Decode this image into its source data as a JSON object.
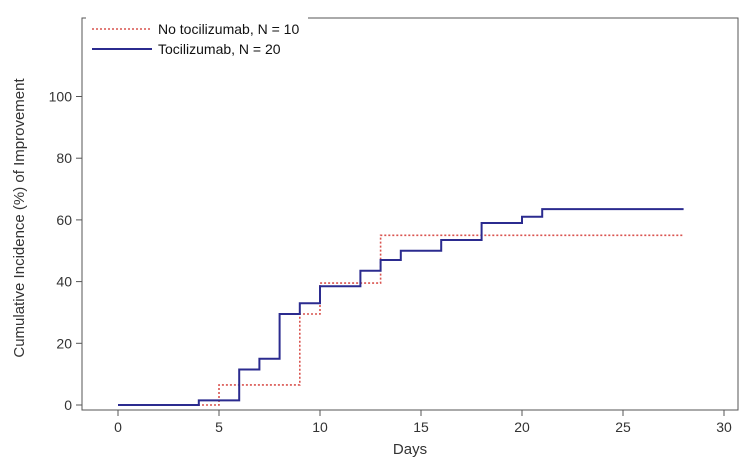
{
  "chart_data": {
    "type": "line",
    "subtype": "step",
    "xlabel": "Days",
    "ylabel": "Cumulative Incidence (%) of Improvement",
    "xlim": [
      0,
      30
    ],
    "ylim": [
      0,
      100
    ],
    "xticks": [
      0,
      5,
      10,
      15,
      20,
      25,
      30
    ],
    "yticks": [
      0,
      20,
      40,
      60,
      80,
      100
    ],
    "grid": false,
    "legend_position": "top-left",
    "series": [
      {
        "name": "No tocilizumab, N = 10",
        "color": "#d9534f",
        "style": "dotted",
        "points": [
          [
            0,
            0
          ],
          [
            5,
            0
          ],
          [
            5,
            6.5
          ],
          [
            9,
            6.5
          ],
          [
            9,
            29.5
          ],
          [
            10,
            29.5
          ],
          [
            10,
            39.5
          ],
          [
            13,
            39.5
          ],
          [
            13,
            55
          ],
          [
            28,
            55
          ]
        ]
      },
      {
        "name": "Tocilizumab, N = 20",
        "color": "#2b2b8f",
        "style": "solid",
        "points": [
          [
            0,
            0
          ],
          [
            4,
            0
          ],
          [
            4,
            1.5
          ],
          [
            6,
            1.5
          ],
          [
            6,
            11.5
          ],
          [
            7,
            11.5
          ],
          [
            7,
            15
          ],
          [
            8,
            15
          ],
          [
            8,
            29.5
          ],
          [
            9,
            29.5
          ],
          [
            9,
            33
          ],
          [
            10,
            33
          ],
          [
            10,
            38.5
          ],
          [
            12,
            38.5
          ],
          [
            12,
            43.5
          ],
          [
            13,
            43.5
          ],
          [
            13,
            47
          ],
          [
            14,
            47
          ],
          [
            14,
            50
          ],
          [
            16,
            50
          ],
          [
            16,
            53.5
          ],
          [
            18,
            53.5
          ],
          [
            18,
            59
          ],
          [
            20,
            59
          ],
          [
            20,
            61
          ],
          [
            21,
            61
          ],
          [
            21,
            63.5
          ],
          [
            28,
            63.5
          ]
        ]
      }
    ]
  }
}
